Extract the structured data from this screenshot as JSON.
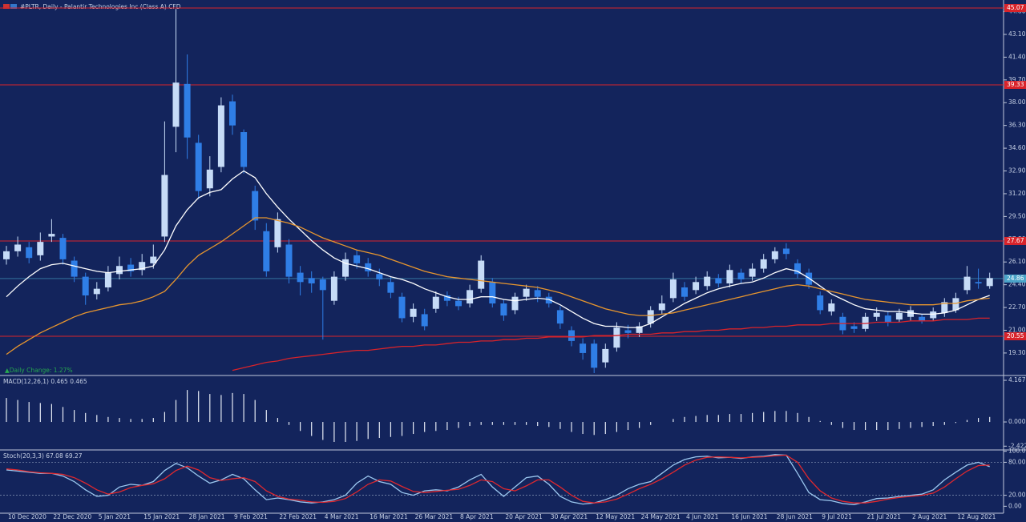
{
  "header": {
    "title": "#PLTR, Daily - Palantir Technologies Inc (Class A) CFD",
    "daily_change": "▲Daily Change: 1.27%"
  },
  "chart_data": [
    {
      "type": "candlestick",
      "categories": [
        "10 Dec 2020",
        null,
        null,
        null,
        "22 Dec 2020",
        null,
        null,
        null,
        "5 Jan 2021",
        null,
        null,
        null,
        "15 Jan 2021",
        null,
        null,
        null,
        "28 Jan 2021",
        null,
        null,
        null,
        "9 Feb 2021",
        null,
        null,
        null,
        "22 Feb 2021",
        null,
        null,
        null,
        "4 Mar 2021",
        null,
        null,
        null,
        "16 Mar 2021",
        null,
        null,
        null,
        "26 Mar 2021",
        null,
        null,
        null,
        "8 Apr 2021",
        null,
        null,
        null,
        "20 Apr 2021",
        null,
        null,
        null,
        "30 Apr 2021",
        null,
        null,
        null,
        "12 May 2021",
        null,
        null,
        null,
        "24 May 2021",
        null,
        null,
        null,
        "4 Jun 2021",
        null,
        null,
        null,
        "16 Jun 2021",
        null,
        null,
        null,
        "28 Jun 2021",
        null,
        null,
        null,
        "9 Jul 2021",
        null,
        null,
        null,
        "21 Jul 2021",
        null,
        null,
        null,
        "2 Aug 2021",
        null,
        null,
        null,
        "12 Aug 2021",
        null,
        null,
        null
      ],
      "open": [
        26.3,
        26.9,
        27.2,
        26.6,
        28.0,
        27.9,
        26.2,
        25.0,
        23.7,
        24.2,
        25.2,
        25.9,
        25.5,
        26.0,
        28.0,
        36.2,
        39.4,
        35.0,
        31.6,
        33.2,
        38.1,
        35.8,
        31.4,
        28.4,
        27.2,
        27.4,
        25.3,
        24.9,
        24.8,
        23.2,
        25.0,
        26.6,
        26.0,
        25.2,
        24.6,
        23.5,
        22.0,
        22.2,
        22.6,
        23.6,
        23.2,
        23.0,
        24.1,
        24.6,
        23.0,
        22.5,
        23.5,
        24.0,
        23.5,
        22.5,
        21.0,
        20.0,
        20.0,
        18.6,
        19.7,
        21.0,
        20.8,
        21.5,
        22.5,
        23.4,
        24.2,
        24.0,
        24.3,
        24.9,
        24.5,
        25.3,
        25.0,
        25.6,
        26.3,
        27.1,
        26.0,
        25.3,
        23.6,
        22.4,
        22.0,
        21.3,
        21.1,
        22.0,
        22.1,
        21.8,
        22.0,
        22.0,
        21.9,
        22.3,
        22.5,
        24.0,
        24.6,
        24.3
      ],
      "high": [
        27.3,
        28.0,
        27.6,
        28.3,
        29.3,
        28.2,
        26.5,
        25.3,
        24.6,
        25.8,
        26.5,
        26.4,
        26.7,
        27.4,
        36.6,
        45.0,
        41.6,
        35.6,
        34.0,
        38.4,
        38.6,
        36.0,
        31.8,
        29.0,
        29.8,
        27.8,
        25.8,
        25.4,
        25.0,
        25.4,
        26.8,
        27.0,
        26.4,
        25.6,
        25.0,
        23.8,
        23.0,
        22.6,
        23.9,
        23.9,
        23.5,
        24.4,
        26.6,
        24.9,
        23.3,
        23.8,
        24.4,
        24.3,
        23.8,
        22.8,
        21.3,
        20.4,
        20.3,
        20.0,
        21.6,
        21.4,
        21.6,
        22.8,
        23.6,
        25.3,
        24.6,
        25.0,
        25.4,
        25.2,
        25.9,
        25.6,
        26.0,
        26.7,
        27.2,
        27.5,
        26.3,
        25.6,
        23.9,
        23.3,
        22.3,
        21.6,
        22.3,
        22.7,
        22.4,
        22.6,
        22.8,
        22.2,
        22.7,
        23.4,
        23.8,
        25.8,
        25.6,
        25.3
      ],
      "low": [
        25.9,
        26.5,
        26.0,
        26.2,
        27.6,
        25.9,
        24.6,
        22.9,
        23.3,
        23.9,
        24.8,
        25.0,
        25.1,
        25.6,
        27.6,
        34.3,
        33.8,
        30.8,
        31.0,
        32.8,
        35.6,
        32.7,
        28.5,
        25.0,
        26.8,
        24.5,
        23.6,
        23.8,
        20.3,
        22.9,
        24.7,
        25.6,
        25.0,
        24.3,
        23.4,
        21.6,
        21.6,
        21.0,
        22.3,
        22.8,
        22.5,
        22.7,
        23.8,
        22.7,
        21.7,
        22.2,
        23.2,
        23.1,
        22.7,
        21.1,
        19.8,
        18.8,
        17.8,
        18.2,
        19.4,
        20.4,
        20.5,
        21.2,
        22.2,
        23.1,
        23.2,
        23.7,
        24.0,
        24.2,
        24.2,
        24.5,
        24.7,
        25.3,
        26.0,
        26.3,
        24.9,
        24.1,
        22.2,
        22.1,
        20.7,
        20.8,
        20.9,
        21.7,
        21.3,
        21.6,
        21.7,
        21.5,
        21.7,
        22.0,
        22.3,
        23.7,
        24.1,
        24.1
      ],
      "close": [
        26.9,
        27.4,
        26.4,
        27.6,
        28.2,
        26.3,
        25.0,
        23.6,
        24.1,
        25.3,
        25.8,
        25.4,
        26.1,
        26.5,
        32.6,
        39.5,
        35.4,
        31.4,
        33.0,
        37.8,
        36.3,
        33.2,
        29.2,
        25.4,
        29.3,
        25.0,
        24.6,
        24.5,
        24.0,
        25.0,
        26.3,
        26.0,
        25.4,
        24.8,
        23.8,
        21.9,
        22.6,
        21.3,
        23.5,
        23.2,
        22.8,
        24.0,
        26.2,
        23.0,
        22.1,
        23.5,
        24.1,
        23.5,
        23.0,
        21.5,
        20.2,
        19.3,
        18.2,
        19.6,
        21.2,
        20.8,
        21.3,
        22.5,
        23.0,
        24.8,
        23.5,
        24.6,
        25.0,
        24.5,
        25.5,
        24.8,
        25.6,
        26.3,
        26.9,
        26.7,
        25.2,
        24.4,
        22.5,
        23.0,
        21.0,
        21.1,
        22.0,
        22.3,
        21.6,
        22.3,
        22.5,
        21.7,
        22.4,
        23.1,
        23.4,
        25.0,
        24.5,
        24.9
      ],
      "up_color": "#c6dbf7",
      "down_color": "#2f7ee6",
      "series": [
        {
          "color": "#ffffff",
          "values": [
            23.5,
            24.3,
            25.0,
            25.6,
            25.9,
            26.0,
            25.8,
            25.6,
            25.4,
            25.3,
            25.4,
            25.5,
            25.6,
            25.8,
            27.0,
            28.8,
            30.0,
            30.9,
            31.3,
            31.5,
            32.3,
            32.9,
            32.4,
            31.2,
            30.2,
            29.3,
            28.5,
            27.7,
            27.0,
            26.4,
            26.0,
            25.8,
            25.6,
            25.3,
            25.0,
            24.8,
            24.5,
            24.1,
            23.8,
            23.5,
            23.3,
            23.3,
            23.5,
            23.5,
            23.3,
            23.2,
            23.3,
            23.4,
            23.3,
            22.9,
            22.4,
            21.9,
            21.5,
            21.3,
            21.3,
            21.2,
            21.2,
            21.5,
            22.0,
            22.5,
            23.0,
            23.4,
            23.8,
            24.1,
            24.3,
            24.5,
            24.6,
            24.9,
            25.3,
            25.6,
            25.4,
            24.9,
            24.3,
            23.7,
            23.3,
            22.9,
            22.6,
            22.5,
            22.4,
            22.4,
            22.3,
            22.2,
            22.2,
            22.3,
            22.5,
            22.9,
            23.3,
            23.6
          ]
        },
        {
          "color": "#e8962e",
          "values": [
            19.2,
            19.8,
            20.3,
            20.8,
            21.2,
            21.6,
            22.0,
            22.3,
            22.5,
            22.7,
            22.9,
            23.0,
            23.2,
            23.5,
            23.9,
            24.8,
            25.8,
            26.6,
            27.1,
            27.6,
            28.2,
            28.8,
            29.4,
            29.4,
            29.2,
            29.0,
            28.7,
            28.3,
            27.9,
            27.6,
            27.3,
            27.0,
            26.8,
            26.6,
            26.3,
            26.0,
            25.7,
            25.4,
            25.2,
            25.0,
            24.9,
            24.8,
            24.7,
            24.6,
            24.5,
            24.4,
            24.3,
            24.2,
            24.0,
            23.8,
            23.5,
            23.2,
            22.9,
            22.6,
            22.4,
            22.2,
            22.1,
            22.1,
            22.2,
            22.3,
            22.5,
            22.7,
            22.9,
            23.1,
            23.3,
            23.5,
            23.7,
            23.9,
            24.1,
            24.3,
            24.4,
            24.3,
            24.1,
            23.9,
            23.7,
            23.5,
            23.3,
            23.2,
            23.1,
            23.0,
            22.9,
            22.9,
            22.9,
            23.0,
            23.0,
            23.2,
            23.3,
            23.4
          ]
        },
        {
          "color": "#d8232a",
          "values": [
            null,
            null,
            null,
            null,
            null,
            null,
            null,
            null,
            null,
            null,
            null,
            null,
            null,
            null,
            null,
            null,
            null,
            null,
            null,
            null,
            18.0,
            18.2,
            18.4,
            18.6,
            18.7,
            18.9,
            19.0,
            19.1,
            19.2,
            19.3,
            19.4,
            19.5,
            19.5,
            19.6,
            19.7,
            19.8,
            19.8,
            19.9,
            19.9,
            20.0,
            20.1,
            20.1,
            20.2,
            20.2,
            20.3,
            20.3,
            20.4,
            20.4,
            20.5,
            20.5,
            20.5,
            20.5,
            20.6,
            20.6,
            20.6,
            20.7,
            20.7,
            20.7,
            20.8,
            20.8,
            20.9,
            20.9,
            21.0,
            21.0,
            21.1,
            21.1,
            21.2,
            21.2,
            21.3,
            21.3,
            21.4,
            21.4,
            21.4,
            21.5,
            21.5,
            21.5,
            21.5,
            21.6,
            21.6,
            21.6,
            21.7,
            21.7,
            21.7,
            21.8,
            21.8,
            21.8,
            21.9,
            21.9
          ]
        }
      ],
      "levels": [
        45.07,
        39.33,
        27.67,
        20.55
      ],
      "level_color": "#d8232a",
      "current": 24.86,
      "current_color": "#4aa3c8",
      "ylim": [
        17.68,
        45.67
      ],
      "yticks": [
        {
          "value": 19.3,
          "label": "19.30"
        },
        {
          "value": 21,
          "label": "21.00"
        },
        {
          "value": 22.7,
          "label": "22.70"
        },
        {
          "value": 24.4,
          "label": "24.40"
        },
        {
          "value": 26.1,
          "label": "26.10"
        },
        {
          "value": 27.8,
          "label": "27.80"
        },
        {
          "value": 29.5,
          "label": "29.50"
        },
        {
          "value": 31.2,
          "label": "31.20"
        },
        {
          "value": 32.9,
          "label": "32.90"
        },
        {
          "value": 34.6,
          "label": "34.60"
        },
        {
          "value": 36.3,
          "label": "36.30"
        },
        {
          "value": 38,
          "label": "38.00"
        },
        {
          "value": 39.7,
          "label": "39.70"
        },
        {
          "value": 41.4,
          "label": "41.40"
        },
        {
          "value": 43.1,
          "label": "43.10"
        },
        {
          "value": 44.8,
          "label": "44.80"
        }
      ]
    },
    {
      "type": "bar",
      "title": "MACD(12,26,1) 0.465 0.465",
      "color": "#e6ebf5",
      "values": [
        2.4,
        2.2,
        2.0,
        1.9,
        1.8,
        1.5,
        1.2,
        0.9,
        0.7,
        0.5,
        0.4,
        0.3,
        0.3,
        0.4,
        1.0,
        2.2,
        3.2,
        3.1,
        2.8,
        2.7,
        2.9,
        2.8,
        2.2,
        1.2,
        0.4,
        -0.3,
        -0.9,
        -1.4,
        -1.8,
        -2.0,
        -2.0,
        -1.9,
        -1.7,
        -1.6,
        -1.5,
        -1.4,
        -1.2,
        -1.0,
        -0.9,
        -0.8,
        -0.6,
        -0.4,
        -0.3,
        -0.3,
        -0.3,
        -0.3,
        -0.3,
        -0.4,
        -0.5,
        -0.7,
        -1.0,
        -1.2,
        -1.3,
        -1.2,
        -1.0,
        -0.8,
        -0.6,
        -0.3,
        0.0,
        0.3,
        0.5,
        0.6,
        0.7,
        0.7,
        0.8,
        0.8,
        0.9,
        1.0,
        1.1,
        1.1,
        0.9,
        0.5,
        0.1,
        -0.3,
        -0.6,
        -0.8,
        -0.8,
        -0.8,
        -0.8,
        -0.7,
        -0.6,
        -0.5,
        -0.4,
        -0.3,
        -0.1,
        0.2,
        0.4,
        0.5
      ],
      "ylim": [
        -2.8,
        4.57
      ],
      "yticks": [
        4.167,
        {
          "value": 0,
          "label": "0.000"
        },
        -2.422
      ]
    },
    {
      "type": "line",
      "title": "Stoch(20,3,3) 67.08 69.27",
      "series": [
        {
          "color": "#9cc8f0",
          "values": [
            66,
            64,
            62,
            60,
            60,
            55,
            45,
            30,
            18,
            20,
            35,
            40,
            38,
            45,
            65,
            78,
            70,
            55,
            42,
            48,
            58,
            50,
            30,
            12,
            15,
            12,
            8,
            6,
            8,
            12,
            20,
            42,
            55,
            45,
            40,
            25,
            20,
            28,
            30,
            28,
            35,
            48,
            58,
            35,
            18,
            35,
            52,
            55,
            40,
            18,
            8,
            4,
            6,
            12,
            20,
            32,
            40,
            45,
            60,
            75,
            85,
            90,
            91,
            88,
            89,
            87,
            90,
            91,
            94,
            93,
            60,
            25,
            12,
            10,
            5,
            3,
            8,
            14,
            15,
            18,
            20,
            22,
            30,
            48,
            62,
            75,
            80,
            72
          ]
        },
        {
          "color": "#e0282e",
          "values": [
            68,
            66,
            63,
            61,
            60,
            58,
            52,
            42,
            30,
            22,
            26,
            34,
            38,
            41,
            50,
            65,
            73,
            66,
            52,
            47,
            50,
            52,
            45,
            28,
            18,
            13,
            11,
            8,
            7,
            9,
            14,
            26,
            40,
            48,
            46,
            36,
            27,
            25,
            27,
            29,
            31,
            38,
            48,
            45,
            32,
            28,
            37,
            48,
            48,
            35,
            20,
            9,
            6,
            8,
            13,
            22,
            32,
            40,
            50,
            62,
            75,
            84,
            89,
            90,
            89,
            88,
            89,
            90,
            92,
            93,
            80,
            50,
            28,
            15,
            9,
            6,
            6,
            9,
            13,
            16,
            18,
            20,
            24,
            35,
            50,
            64,
            74,
            75
          ]
        }
      ],
      "levels": [
        80,
        20
      ],
      "ylim": [
        -12.6,
        101
      ],
      "yticks": [
        {
          "value": 100,
          "label": "100.00"
        },
        {
          "value": 80,
          "label": "80.00"
        },
        {
          "value": 20,
          "label": "20.00"
        },
        {
          "value": 0,
          "label": "0.00"
        }
      ]
    }
  ]
}
